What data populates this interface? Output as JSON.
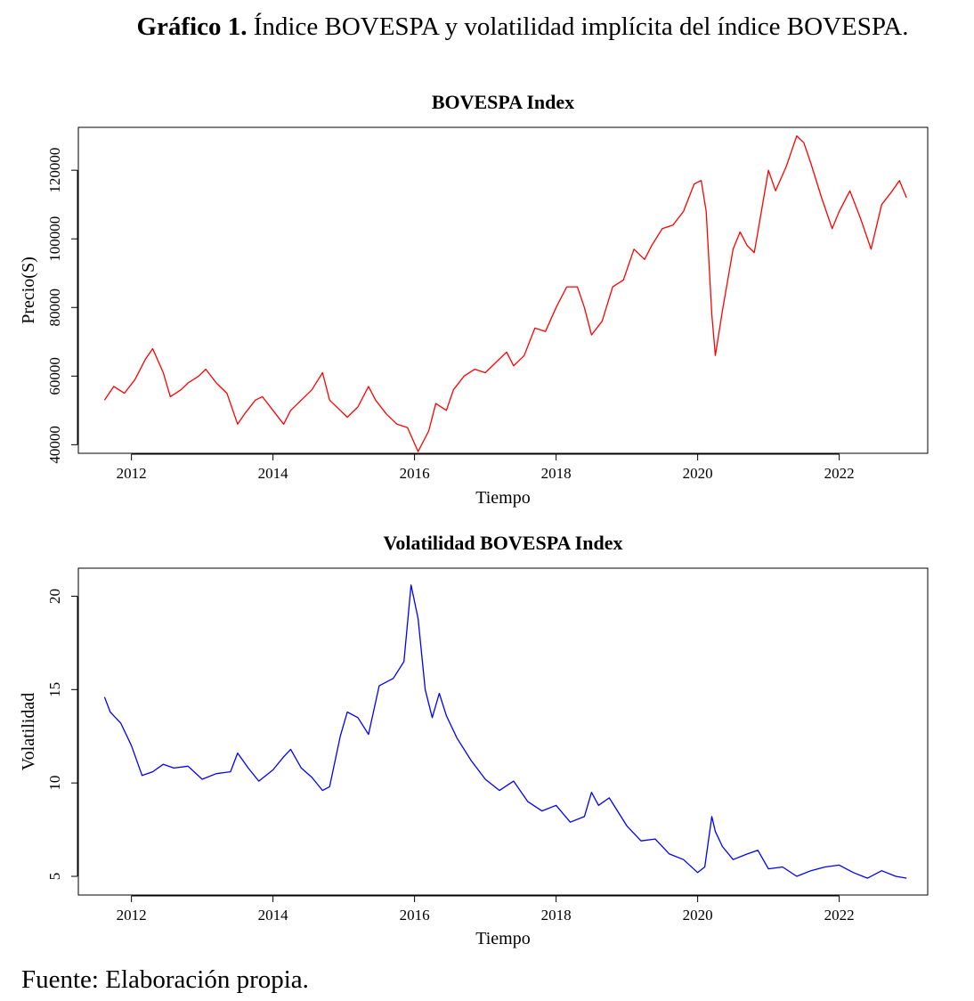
{
  "figure": {
    "caption_bold": "Gráfico 1.",
    "caption_rest": " Índice BOVESPA y volatilidad implícita del índice BOVESPA.",
    "source": "Fuente: Elaboración propia."
  },
  "colors": {
    "index_line": "#ff0000",
    "vol_line": "#0000ff",
    "axis": "#000000"
  },
  "chart_data": [
    {
      "type": "line",
      "title": "BOVESPA Index",
      "xlabel": "Tiempo",
      "ylabel": "Precio(S)",
      "xlim": [
        2011.25,
        2023.25
      ],
      "ylim": [
        37500,
        132500
      ],
      "x_ticks": [
        2012,
        2014,
        2016,
        2018,
        2020,
        2022
      ],
      "y_ticks": [
        40000,
        60000,
        80000,
        100000,
        120000
      ],
      "grid": false,
      "legend": "none",
      "series": [
        {
          "color": "#ff0000",
          "x": [
            2011.62,
            2011.75,
            2011.9,
            2012.05,
            2012.2,
            2012.3,
            2012.45,
            2012.55,
            2012.7,
            2012.8,
            2012.95,
            2013.05,
            2013.2,
            2013.35,
            2013.5,
            2013.6,
            2013.75,
            2013.85,
            2014.0,
            2014.15,
            2014.25,
            2014.4,
            2014.55,
            2014.7,
            2014.8,
            2014.95,
            2015.05,
            2015.2,
            2015.35,
            2015.45,
            2015.6,
            2015.75,
            2015.9,
            2016.05,
            2016.2,
            2016.3,
            2016.45,
            2016.55,
            2016.7,
            2016.85,
            2017.0,
            2017.15,
            2017.3,
            2017.4,
            2017.55,
            2017.7,
            2017.85,
            2018.0,
            2018.15,
            2018.3,
            2018.4,
            2018.5,
            2018.65,
            2018.8,
            2018.95,
            2019.1,
            2019.25,
            2019.35,
            2019.5,
            2019.65,
            2019.8,
            2019.95,
            2020.05,
            2020.12,
            2020.2,
            2020.25,
            2020.35,
            2020.5,
            2020.6,
            2020.7,
            2020.8,
            2020.9,
            2021.0,
            2021.1,
            2021.25,
            2021.4,
            2021.5,
            2021.6,
            2021.75,
            2021.9,
            2022.0,
            2022.15,
            2022.3,
            2022.45,
            2022.6,
            2022.75,
            2022.85,
            2022.95
          ],
          "y": [
            53000,
            57000,
            55000,
            59000,
            65000,
            68000,
            61000,
            54000,
            56000,
            58000,
            60000,
            62000,
            58000,
            55000,
            46000,
            49000,
            53000,
            54000,
            50000,
            46000,
            50000,
            53000,
            56000,
            61000,
            53000,
            50000,
            48000,
            51000,
            57000,
            53000,
            49000,
            46000,
            45000,
            38000,
            44000,
            52000,
            50000,
            56000,
            60000,
            62000,
            61000,
            64000,
            67000,
            63000,
            66000,
            74000,
            73000,
            80000,
            86000,
            86000,
            80000,
            72000,
            76000,
            86000,
            88000,
            97000,
            94000,
            98000,
            103000,
            104000,
            108000,
            116000,
            117000,
            108000,
            78000,
            66000,
            79000,
            97000,
            102000,
            98000,
            96000,
            108000,
            120000,
            114000,
            121000,
            130000,
            128000,
            122000,
            112000,
            103000,
            108000,
            114000,
            106000,
            97000,
            110000,
            114000,
            117000,
            112000
          ]
        }
      ]
    },
    {
      "type": "line",
      "title": "Volatilidad BOVESPA Index",
      "xlabel": "Tiempo",
      "ylabel": "Volatilidad",
      "xlim": [
        2011.25,
        2023.25
      ],
      "ylim": [
        4.0,
        21.5
      ],
      "x_ticks": [
        2012,
        2014,
        2016,
        2018,
        2020,
        2022
      ],
      "y_ticks": [
        5,
        10,
        15,
        20
      ],
      "grid": false,
      "legend": "none",
      "series": [
        {
          "color": "#0000ff",
          "x": [
            2011.62,
            2011.7,
            2011.85,
            2012.0,
            2012.15,
            2012.3,
            2012.45,
            2012.6,
            2012.8,
            2013.0,
            2013.2,
            2013.4,
            2013.5,
            2013.65,
            2013.8,
            2014.0,
            2014.15,
            2014.25,
            2014.4,
            2014.55,
            2014.7,
            2014.8,
            2014.95,
            2015.05,
            2015.2,
            2015.35,
            2015.5,
            2015.7,
            2015.85,
            2015.95,
            2016.05,
            2016.15,
            2016.25,
            2016.35,
            2016.45,
            2016.6,
            2016.8,
            2017.0,
            2017.2,
            2017.4,
            2017.6,
            2017.8,
            2018.0,
            2018.2,
            2018.4,
            2018.5,
            2018.6,
            2018.75,
            2019.0,
            2019.2,
            2019.4,
            2019.6,
            2019.8,
            2020.0,
            2020.1,
            2020.2,
            2020.25,
            2020.35,
            2020.5,
            2020.7,
            2020.85,
            2021.0,
            2021.2,
            2021.4,
            2021.6,
            2021.8,
            2022.0,
            2022.2,
            2022.4,
            2022.6,
            2022.8,
            2022.95
          ],
          "y": [
            14.6,
            13.8,
            13.2,
            12.0,
            10.4,
            10.6,
            11.0,
            10.8,
            10.9,
            10.2,
            10.5,
            10.6,
            11.6,
            10.8,
            10.1,
            10.7,
            11.4,
            11.8,
            10.8,
            10.3,
            9.6,
            9.8,
            12.5,
            13.8,
            13.5,
            12.6,
            15.2,
            15.6,
            16.5,
            20.6,
            18.8,
            15.0,
            13.5,
            14.8,
            13.6,
            12.4,
            11.2,
            10.2,
            9.6,
            10.1,
            9.0,
            8.5,
            8.8,
            7.9,
            8.2,
            9.5,
            8.8,
            9.2,
            7.7,
            6.9,
            7.0,
            6.2,
            5.9,
            5.2,
            5.5,
            8.2,
            7.4,
            6.6,
            5.9,
            6.2,
            6.4,
            5.4,
            5.5,
            5.0,
            5.3,
            5.5,
            5.6,
            5.2,
            4.9,
            5.3,
            5.0,
            4.9
          ]
        }
      ]
    }
  ]
}
